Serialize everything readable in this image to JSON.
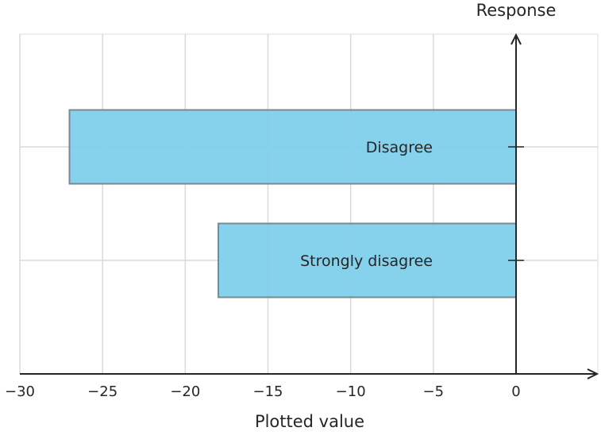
{
  "chart_data": {
    "type": "bar",
    "orientation": "horizontal",
    "categories": [
      "Disagree",
      "Strongly disagree"
    ],
    "values": [
      -27,
      -18
    ],
    "xlabel": "Plotted value",
    "ylabel": "Response",
    "xlim": [
      -30,
      3.5
    ],
    "xticks": [
      -30,
      -25,
      -20,
      -15,
      -10,
      -5,
      0
    ],
    "xtick_labels": [
      "−30",
      "−25",
      "−20",
      "−15",
      "−10",
      "−5",
      "0"
    ],
    "grid": true,
    "legend": "none",
    "colors": {
      "bar_fill": "#7fcfea",
      "bar_stroke": "#7a8a90",
      "grid": "#d9d9d9",
      "axis": "#262626"
    }
  }
}
